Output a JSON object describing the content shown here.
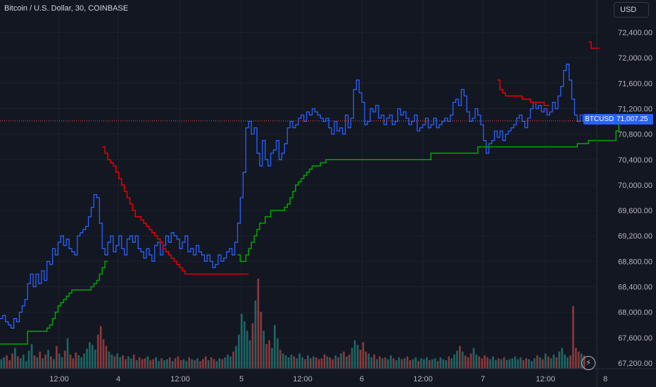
{
  "header": {
    "symbol_title": "Bitcoin / U.S. Dollar, 30, COINBASE",
    "currency": "USD"
  },
  "last_price": {
    "symbol": "BTCUSD",
    "value": "71,007.25",
    "numeric": 71007.25,
    "color": "#2962ff"
  },
  "icons": {
    "replay": "lightning-icon"
  },
  "colors": {
    "background": "#131722",
    "price_line": "#2962ff",
    "upper_band": "#e00000",
    "lower_band": "#00a000",
    "volume_up": "#26a69a",
    "volume_down": "#ef5350",
    "grid": "#1e222d"
  },
  "chart_data": {
    "type": "line",
    "ylim": [
      67000,
      72600
    ],
    "yticks": [
      "72,400.00",
      "72,000.00",
      "71,600.00",
      "71,200.00",
      "70,800.00",
      "70,400.00",
      "70,000.00",
      "69,600.00",
      "69,200.00",
      "68,800.00",
      "68,400.00",
      "68,000.00",
      "67,600.00",
      "67,200.00"
    ],
    "ytick_values": [
      72400,
      72000,
      71600,
      71200,
      70800,
      70400,
      70000,
      69600,
      69200,
      68800,
      68400,
      68000,
      67600,
      67200
    ],
    "xlim": [
      0,
      20
    ],
    "xticks": [
      "12:00",
      "4",
      "12:00",
      "5",
      "12:00",
      "6",
      "12:00",
      "7",
      "12:00",
      "8"
    ],
    "xtick_values": [
      0.84,
      1.84,
      2.84,
      3.84,
      4.84,
      5.84,
      6.84,
      7.84,
      8.84,
      9.84
    ],
    "series": [
      {
        "role": "price",
        "color": "#2962ff",
        "values": [
          67900,
          67950,
          67850,
          67800,
          67750,
          67900,
          67850,
          68000,
          68100,
          68200,
          68450,
          68600,
          68400,
          68600,
          68450,
          68650,
          68500,
          68800,
          68750,
          69000,
          68900,
          69100,
          69200,
          69050,
          69150,
          69000,
          68950,
          68900,
          69200,
          69250,
          69300,
          69350,
          69500,
          69650,
          69850,
          69800,
          69400,
          69000,
          68900,
          69100,
          69200,
          68950,
          69050,
          69200,
          69000,
          68900,
          69150,
          69200,
          69100,
          69200,
          69000,
          68950,
          68850,
          69000,
          68900,
          68800,
          69050,
          69100,
          68900,
          69050,
          69200,
          69100,
          69250,
          69200,
          69150,
          69000,
          69100,
          69200,
          68950,
          69000,
          68900,
          69050,
          68950,
          68900,
          68800,
          68900,
          68800,
          68700,
          68750,
          68900,
          68800,
          68850,
          68950,
          69000,
          68900,
          69100,
          69400,
          69800,
          70200,
          70900,
          71000,
          70800,
          70900,
          70500,
          70300,
          70700,
          70400,
          70300,
          70500,
          70550,
          70700,
          70400,
          70500,
          70650,
          70900,
          71000,
          70900,
          70950,
          71050,
          71100,
          71000,
          71150,
          71100,
          71200,
          71150,
          71100,
          71050,
          71000,
          71050,
          70900,
          70800,
          71000,
          70850,
          70900,
          70800,
          71100,
          70900,
          71050,
          71500,
          71650,
          71450,
          71300,
          70950,
          71000,
          71200,
          71150,
          71250,
          71050,
          71100,
          70950,
          71050,
          71100,
          70950,
          71000,
          71200,
          71100,
          71150,
          71050,
          70950,
          71000,
          71100,
          70850,
          70900,
          70950,
          71050,
          70900,
          70950,
          71050,
          70900,
          70950,
          71000,
          71050,
          71000,
          71100,
          71300,
          71350,
          71250,
          71500,
          71400,
          71150,
          71000,
          71050,
          71200,
          71100,
          70950,
          70700,
          70500,
          70650,
          70700,
          70850,
          70750,
          70850,
          70700,
          70800,
          70850,
          70900,
          70950,
          71050,
          71100,
          71000,
          70900,
          71050,
          71200,
          71300,
          71200,
          71250,
          71150,
          71200,
          71100,
          71150,
          71300,
          71200,
          71400,
          71550,
          71800,
          71900,
          71650,
          71350,
          71100,
          71000,
          71100,
          71000
        ]
      },
      {
        "role": "upper band",
        "color": "#e00000",
        "values": [
          null,
          null,
          null,
          null,
          null,
          null,
          null,
          null,
          null,
          null,
          null,
          null,
          null,
          null,
          null,
          null,
          null,
          null,
          null,
          null,
          null,
          null,
          null,
          null,
          null,
          null,
          null,
          null,
          null,
          null,
          null,
          null,
          null,
          null,
          null,
          null,
          null,
          70600,
          70500,
          70400,
          70350,
          70300,
          70200,
          70100,
          70000,
          69900,
          69800,
          69700,
          69600,
          69500,
          69500,
          69450,
          69400,
          69350,
          69300,
          69250,
          69200,
          69150,
          69100,
          69000,
          68950,
          68900,
          68850,
          68800,
          68750,
          68700,
          68650,
          68600,
          68600,
          68600,
          68600,
          68600,
          68600,
          68600,
          68600,
          68600,
          68600,
          68600,
          68600,
          68600,
          68600,
          68600,
          68600,
          68600,
          68600,
          68600,
          68600,
          68600,
          68600,
          68600,
          null,
          null,
          null,
          null,
          null,
          null,
          null,
          null,
          null,
          null,
          null,
          null,
          null,
          null,
          null,
          null,
          null,
          null,
          null,
          null,
          null,
          null,
          null,
          null,
          null,
          null,
          null,
          null,
          null,
          null,
          null,
          null,
          null,
          null,
          null,
          null,
          null,
          null,
          null,
          null,
          null,
          null,
          null,
          null,
          null,
          null,
          null,
          null,
          null,
          null,
          null,
          null,
          null,
          null,
          null,
          null,
          null,
          null,
          null,
          null,
          null,
          null,
          null,
          null,
          null,
          null,
          null,
          null,
          null,
          null,
          null,
          null,
          null,
          null,
          null,
          null,
          null,
          null,
          null,
          null,
          null,
          null,
          null,
          null,
          null,
          null,
          null,
          null,
          null,
          null,
          71650,
          71500,
          71450,
          71400,
          71400,
          71400,
          71400,
          71400,
          71400,
          71350,
          71350,
          71350,
          71300,
          71300,
          71300,
          71300,
          71300,
          71250,
          71250,
          null,
          null,
          null,
          null,
          null,
          null,
          null,
          null,
          null,
          null,
          null,
          null,
          null,
          null,
          72250,
          72150,
          72150,
          72150
        ]
      },
      {
        "role": "lower band",
        "color": "#00a000",
        "values": [
          67500,
          67500,
          67500,
          67500,
          67500,
          67500,
          67500,
          67500,
          67500,
          67500,
          67700,
          67700,
          67700,
          67700,
          67700,
          67700,
          67700,
          67750,
          67800,
          67900,
          68000,
          68100,
          68150,
          68200,
          68250,
          68300,
          68350,
          68350,
          68350,
          68350,
          68350,
          68350,
          68350,
          68400,
          68450,
          68500,
          68600,
          68700,
          68800,
          null,
          null,
          null,
          null,
          null,
          null,
          null,
          null,
          null,
          null,
          null,
          null,
          null,
          null,
          null,
          null,
          null,
          null,
          null,
          null,
          null,
          null,
          null,
          null,
          null,
          null,
          null,
          null,
          null,
          null,
          null,
          null,
          null,
          null,
          null,
          null,
          null,
          null,
          null,
          null,
          null,
          null,
          null,
          null,
          null,
          null,
          null,
          68900,
          68800,
          68800,
          68900,
          69000,
          69100,
          69200,
          69300,
          69400,
          69400,
          69500,
          69500,
          69600,
          69600,
          69600,
          69600,
          69600,
          69650,
          69700,
          69800,
          69900,
          70000,
          70050,
          70100,
          70150,
          70200,
          70250,
          70300,
          70300,
          70300,
          70350,
          70350,
          70400,
          70400,
          70400,
          70400,
          70400,
          70400,
          70400,
          70400,
          70400,
          70400,
          70400,
          70400,
          70400,
          70400,
          70400,
          70400,
          70400,
          70400,
          70400,
          70400,
          70400,
          70400,
          70400,
          70400,
          70400,
          70400,
          70400,
          70400,
          70400,
          70400,
          70400,
          70400,
          70400,
          70400,
          70400,
          70400,
          70400,
          70400,
          70500,
          70500,
          70500,
          70500,
          70500,
          70500,
          70500,
          70500,
          70500,
          70500,
          70500,
          70500,
          70500,
          70500,
          70500,
          70500,
          70500,
          70600,
          70600,
          70600,
          70600,
          70600,
          70600,
          70600,
          70600,
          70600,
          70600,
          70600,
          70600,
          70600,
          70600,
          70600,
          70600,
          70600,
          70600,
          70600,
          70600,
          70600,
          70600,
          70600,
          70600,
          70600,
          70600,
          70600,
          70600,
          70600,
          70600,
          70600,
          70600,
          70600,
          70600,
          70600,
          70600,
          70650,
          70650,
          70650,
          70650,
          70700,
          70700,
          70700,
          70700,
          70700,
          70700,
          70700,
          70700,
          70700,
          70700,
          70850,
          71000,
          71100,
          71100,
          71100,
          71100
        ]
      }
    ],
    "volume": [
      1.0,
      1.2,
      1.4,
      0.9,
      1.6,
      2.2,
      1.3,
      1.1,
      1.5,
      0.8,
      1.9,
      2.6,
      1.4,
      1.2,
      1.8,
      1.1,
      1.5,
      2.0,
      1.3,
      1.0,
      2.4,
      1.6,
      1.2,
      1.9,
      3.2,
      1.5,
      1.1,
      1.7,
      1.4,
      1.2,
      1.6,
      2.1,
      2.8,
      2.5,
      2.0,
      3.6,
      4.5,
      3.1,
      2.4,
      1.8,
      1.5,
      1.3,
      1.6,
      1.2,
      1.4,
      1.0,
      1.3,
      1.1,
      1.5,
      0.9,
      1.2,
      1.0,
      1.1,
      1.3,
      0.9,
      1.0,
      1.2,
      0.8,
      1.1,
      0.9,
      1.0,
      1.2,
      0.8,
      1.1,
      1.3,
      0.9,
      1.0,
      0.8,
      1.2,
      1.0,
      0.9,
      1.1,
      0.8,
      1.0,
      1.3,
      0.9,
      1.2,
      1.0,
      0.8,
      1.1,
      1.0,
      1.2,
      1.5,
      1.3,
      1.8,
      2.4,
      3.6,
      5.8,
      5.0,
      4.0,
      3.0,
      4.8,
      7.2,
      9.5,
      6.0,
      4.0,
      2.6,
      3.0,
      2.2,
      4.6,
      3.2,
      2.0,
      1.6,
      1.4,
      1.2,
      1.5,
      1.3,
      1.1,
      1.6,
      1.2,
      1.0,
      1.4,
      1.1,
      1.3,
      1.2,
      1.0,
      1.1,
      1.5,
      1.3,
      1.2,
      1.0,
      1.4,
      1.2,
      1.6,
      1.8,
      1.3,
      1.5,
      2.2,
      3.0,
      2.5,
      2.0,
      2.8,
      1.8,
      1.6,
      1.2,
      1.5,
      1.0,
      1.3,
      1.1,
      1.2,
      1.0,
      1.4,
      1.1,
      0.9,
      1.2,
      1.0,
      1.1,
      1.3,
      0.9,
      1.0,
      1.2,
      0.8,
      1.1,
      1.0,
      1.2,
      0.9,
      1.0,
      1.1,
      0.8,
      1.2,
      1.0,
      0.9,
      1.3,
      1.1,
      1.5,
      1.9,
      2.4,
      1.8,
      1.4,
      1.2,
      1.6,
      2.2,
      1.5,
      1.3,
      1.1,
      1.4,
      1.2,
      1.0,
      1.3,
      0.9,
      1.1,
      1.0,
      1.2,
      0.9,
      1.0,
      1.1,
      1.3,
      1.0,
      1.2,
      0.9,
      1.1,
      1.0,
      0.8,
      1.1,
      1.4,
      1.2,
      1.0,
      1.6,
      1.3,
      1.1,
      1.5,
      1.2,
      1.8,
      2.2,
      1.5,
      1.2,
      1.4,
      6.6,
      2.2,
      1.8,
      1.6,
      1.4
    ]
  }
}
